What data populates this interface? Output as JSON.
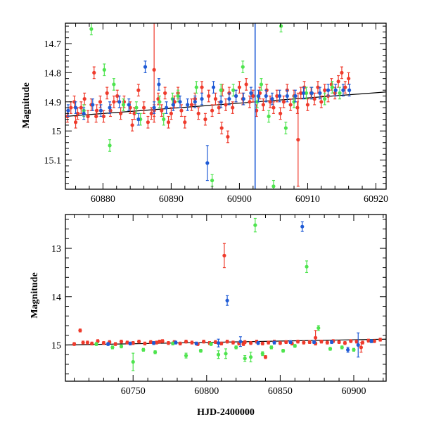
{
  "colors": {
    "red": "#ef3b2c",
    "green": "#4ee44e",
    "blue": "#1f5bd6",
    "fit": "#000000"
  },
  "chart_data": [
    {
      "type": "scatter",
      "title": "",
      "xlabel": "",
      "ylabel": "Magnitude",
      "xlim": [
        60874.5,
        60921.5
      ],
      "ylim": [
        15.2,
        14.63
      ],
      "y_inverted": true,
      "x_ticks": [
        60880,
        60890,
        60900,
        60910,
        60920
      ],
      "x_tick_labels": [
        "60880",
        "60890",
        "60900",
        "60910",
        "60920"
      ],
      "y_ticks": [
        14.7,
        14.8,
        14.9,
        15.0,
        15.1
      ],
      "y_tick_labels": [
        "14.7",
        "14.8",
        "14.9",
        "15",
        "15.1"
      ],
      "legend": "none",
      "vline": {
        "x": 60902.3,
        "color": "blue"
      },
      "fit_line": {
        "x": [
          60874.5,
          60921.5
        ],
        "y": [
          14.95,
          14.866
        ]
      },
      "series": [
        {
          "color": "red",
          "x": [
            60874.8,
            60875.3,
            60875.8,
            60876.3,
            60876.8,
            60877.3,
            60877.8,
            60878.3,
            60878.7,
            60879.1,
            60879.6,
            60880.1,
            60880.6,
            60881.1,
            60881.6,
            60882.1,
            60882.6,
            60883.1,
            60884.0,
            60884.6,
            60885.2,
            60886.0,
            60886.6,
            60887.1,
            60887.5,
            60888.1,
            60888.6,
            60889.1,
            60889.6,
            60890.0,
            60890.5,
            60891.0,
            60891.5,
            60892.0,
            60893.0,
            60893.5,
            60894.0,
            60894.5,
            60895.0,
            60895.5,
            60896.0,
            60896.5,
            60897.0,
            60897.5,
            60898.0,
            60898.5,
            60899.0,
            60899.5,
            60900.0,
            60900.5,
            60901.0,
            60901.5,
            60902.0,
            60902.5,
            60903.0,
            60903.5,
            60904.0,
            60904.5,
            60905.0,
            60905.5,
            60906.0,
            60906.5,
            60907.0,
            60907.5,
            60908.0,
            60908.5,
            60909.0,
            60909.5,
            60910.0,
            60910.5,
            60911.0,
            60911.5,
            60912.0,
            60912.5,
            60913.0,
            60913.5,
            60914.0,
            60914.5,
            60915.0,
            60915.5,
            60916.0,
            60898.3,
            60879.0,
            60887.5,
            60908.6,
            60876.0,
            60884.3,
            60897.4
          ],
          "y": [
            14.95,
            14.92,
            14.9,
            14.94,
            14.92,
            14.89,
            14.95,
            14.91,
            14.8,
            14.93,
            14.9,
            14.95,
            14.87,
            14.93,
            14.9,
            14.88,
            14.94,
            14.9,
            14.92,
            14.94,
            14.86,
            14.92,
            14.97,
            14.94,
            14.79,
            14.89,
            14.93,
            14.87,
            14.97,
            14.94,
            14.9,
            14.87,
            14.93,
            14.97,
            14.91,
            14.89,
            14.94,
            14.85,
            14.96,
            14.88,
            14.93,
            14.89,
            14.92,
            14.86,
            14.91,
            14.87,
            14.92,
            14.88,
            14.85,
            14.89,
            14.84,
            14.9,
            14.88,
            14.93,
            14.87,
            14.91,
            14.86,
            14.9,
            14.92,
            14.88,
            14.94,
            14.9,
            14.86,
            14.91,
            14.88,
            14.92,
            14.87,
            14.85,
            14.91,
            14.87,
            14.89,
            14.85,
            14.9,
            14.86,
            14.88,
            14.84,
            14.87,
            14.83,
            14.8,
            14.85,
            14.82,
            15.02,
            14.95,
            14.93,
            15.03,
            14.97,
            14.98,
            14.99
          ],
          "err": [
            0.02,
            0.02,
            0.02,
            0.02,
            0.02,
            0.02,
            0.02,
            0.02,
            0.02,
            0.02,
            0.02,
            0.02,
            0.02,
            0.02,
            0.02,
            0.02,
            0.02,
            0.02,
            0.02,
            0.02,
            0.02,
            0.02,
            0.02,
            0.02,
            0.18,
            0.02,
            0.02,
            0.02,
            0.02,
            0.02,
            0.02,
            0.02,
            0.02,
            0.02,
            0.02,
            0.02,
            0.02,
            0.02,
            0.02,
            0.02,
            0.02,
            0.02,
            0.02,
            0.02,
            0.02,
            0.02,
            0.02,
            0.02,
            0.02,
            0.02,
            0.02,
            0.02,
            0.02,
            0.02,
            0.02,
            0.02,
            0.02,
            0.02,
            0.02,
            0.02,
            0.02,
            0.02,
            0.02,
            0.02,
            0.02,
            0.02,
            0.02,
            0.02,
            0.02,
            0.02,
            0.02,
            0.02,
            0.02,
            0.02,
            0.02,
            0.02,
            0.02,
            0.02,
            0.02,
            0.02,
            0.02,
            0.02,
            0.02,
            0.02,
            0.16,
            0.02,
            0.02,
            0.02
          ]
        },
        {
          "color": "green",
          "x": [
            60878.3,
            60880.2,
            60881.0,
            60883.0,
            60885.5,
            60888.3,
            60891.0,
            60893.7,
            60896.0,
            60899.1,
            60900.5,
            60902.6,
            60904.3,
            60905.0,
            60906.1,
            60906.8,
            60908.0,
            60909.8,
            60912.5,
            60914.7,
            60877.2,
            60884.9,
            60890.2,
            60897.3,
            60903.2,
            60910.6,
            60913.6,
            60888.9,
            60881.6
          ],
          "y": [
            14.65,
            14.79,
            15.05,
            14.91,
            14.96,
            14.9,
            14.88,
            14.85,
            15.17,
            14.86,
            14.78,
            14.9,
            14.95,
            15.19,
            14.64,
            14.99,
            14.9,
            14.87,
            14.89,
            14.87,
            14.93,
            14.92,
            14.89,
            14.86,
            14.84,
            14.87,
            14.85,
            14.96,
            14.84
          ],
          "err": [
            0.02,
            0.02,
            0.02,
            0.02,
            0.02,
            0.02,
            0.02,
            0.02,
            0.02,
            0.02,
            0.02,
            0.02,
            0.02,
            0.02,
            0.02,
            0.02,
            0.02,
            0.02,
            0.02,
            0.02,
            0.02,
            0.02,
            0.02,
            0.02,
            0.02,
            0.02,
            0.02,
            0.02,
            0.02
          ]
        },
        {
          "color": "blue",
          "x": [
            60874.9,
            60876.0,
            60877.2,
            60878.5,
            60879.7,
            60881.0,
            60882.4,
            60883.8,
            60885.2,
            60886.2,
            60887.5,
            60888.2,
            60889.3,
            60890.3,
            60891.3,
            60892.4,
            60893.5,
            60894.5,
            60895.3,
            60896.2,
            60897.3,
            60898.5,
            60899.5,
            60900.6,
            60901.7,
            60902.8,
            60903.9,
            60904.8,
            60905.9,
            60907.0,
            60908.2,
            60909.4,
            60910.6,
            60911.8,
            60913.0,
            60914.1,
            60915.2,
            60916.1
          ],
          "y": [
            14.93,
            14.92,
            14.94,
            14.91,
            14.93,
            14.92,
            14.9,
            14.91,
            14.96,
            14.78,
            14.92,
            14.84,
            14.92,
            14.91,
            14.9,
            14.91,
            14.9,
            14.89,
            15.11,
            14.85,
            14.9,
            14.89,
            14.88,
            14.89,
            14.87,
            14.88,
            14.88,
            14.89,
            14.88,
            14.88,
            14.88,
            14.87,
            14.87,
            14.87,
            14.86,
            14.86,
            14.86,
            14.86
          ],
          "err": [
            0.02,
            0.02,
            0.02,
            0.02,
            0.02,
            0.02,
            0.02,
            0.02,
            0.02,
            0.02,
            0.02,
            0.02,
            0.02,
            0.02,
            0.02,
            0.02,
            0.02,
            0.02,
            0.06,
            0.02,
            0.02,
            0.02,
            0.02,
            0.02,
            0.02,
            0.02,
            0.02,
            0.02,
            0.02,
            0.02,
            0.02,
            0.02,
            0.02,
            0.02,
            0.02,
            0.02,
            0.02,
            0.02
          ]
        }
      ]
    },
    {
      "type": "scatter",
      "title": "",
      "xlabel": "HJD-2400000",
      "ylabel": "Magnitude",
      "xlim": [
        60704,
        60922
      ],
      "ylim": [
        15.75,
        12.3
      ],
      "y_inverted": true,
      "x_ticks": [
        60750,
        60800,
        60850,
        60900
      ],
      "x_tick_labels": [
        "60750",
        "60800",
        "60850",
        "60900"
      ],
      "y_ticks": [
        13,
        14,
        15
      ],
      "y_tick_labels": [
        "13",
        "14",
        "15"
      ],
      "legend": "none",
      "fit_line": {
        "x": [
          60704,
          60922
        ],
        "y": [
          15.0,
          14.88
        ]
      },
      "series": [
        {
          "color": "red",
          "x": [
            60710,
            60714,
            60716,
            60719,
            60722,
            60726,
            60730,
            60734,
            60738,
            60742,
            60746,
            60750,
            60754,
            60758,
            60762,
            60766,
            60770,
            60774,
            60778,
            60782,
            60786,
            60790,
            60794,
            60798,
            60802,
            60806,
            60810,
            60814,
            60818,
            60822,
            60826,
            60830,
            60834,
            60838,
            60842,
            60846,
            60850,
            60854,
            60858,
            60862,
            60866,
            60870,
            60874,
            60878,
            60882,
            60886,
            60890,
            60894,
            60898,
            60902,
            60906,
            60910,
            60914,
            60918,
            60812,
            60874,
            60905,
            60840,
            60768,
            60825
          ],
          "y": [
            14.98,
            14.7,
            14.95,
            14.95,
            14.97,
            14.92,
            14.96,
            14.94,
            14.98,
            14.93,
            14.95,
            14.96,
            14.93,
            14.97,
            14.94,
            14.95,
            14.92,
            14.96,
            14.94,
            14.97,
            14.93,
            14.95,
            14.98,
            14.93,
            14.96,
            14.94,
            14.97,
            14.93,
            14.95,
            14.97,
            14.94,
            14.96,
            14.93,
            14.97,
            14.95,
            14.93,
            14.96,
            14.94,
            14.97,
            14.93,
            14.95,
            14.94,
            14.97,
            14.93,
            14.95,
            14.92,
            14.94,
            14.96,
            14.92,
            14.93,
            14.95,
            14.91,
            14.92,
            14.89,
            13.15,
            14.85,
            15.05,
            15.25,
            14.93,
            14.98
          ],
          "err": [
            0.03,
            0.03,
            0.03,
            0.03,
            0.03,
            0.03,
            0.03,
            0.03,
            0.03,
            0.03,
            0.03,
            0.03,
            0.03,
            0.03,
            0.03,
            0.03,
            0.03,
            0.03,
            0.03,
            0.03,
            0.03,
            0.03,
            0.03,
            0.03,
            0.03,
            0.03,
            0.03,
            0.03,
            0.03,
            0.03,
            0.03,
            0.03,
            0.03,
            0.03,
            0.03,
            0.03,
            0.03,
            0.03,
            0.03,
            0.03,
            0.03,
            0.03,
            0.03,
            0.03,
            0.03,
            0.03,
            0.03,
            0.03,
            0.03,
            0.03,
            0.03,
            0.03,
            0.03,
            0.03,
            0.25,
            0.15,
            0.1,
            0.03,
            0.03,
            0.03
          ]
        },
        {
          "color": "green",
          "x": [
            60725,
            60736,
            60742,
            60750,
            60757,
            60765,
            60777,
            60786,
            60796,
            60803,
            60808,
            60813,
            60820,
            60826,
            60830,
            60833,
            60838,
            60844,
            60852,
            60860,
            60868,
            60876,
            60884,
            60892,
            60900,
            60912
          ],
          "y": [
            14.98,
            15.05,
            15.03,
            15.35,
            15.1,
            15.15,
            14.97,
            15.22,
            15.12,
            14.98,
            15.2,
            15.18,
            15.05,
            15.28,
            15.25,
            12.52,
            15.18,
            15.05,
            15.12,
            15.02,
            13.38,
            14.65,
            15.08,
            15.05,
            15.1,
            14.92
          ],
          "err": [
            0.03,
            0.03,
            0.03,
            0.18,
            0.03,
            0.03,
            0.03,
            0.05,
            0.03,
            0.03,
            0.08,
            0.1,
            0.03,
            0.06,
            0.1,
            0.14,
            0.04,
            0.03,
            0.03,
            0.03,
            0.12,
            0.05,
            0.03,
            0.03,
            0.03,
            0.03
          ]
        },
        {
          "color": "blue",
          "x": [
            60733,
            60748,
            60764,
            60779,
            60793,
            60808,
            60814,
            60823,
            60835,
            60846,
            60857,
            60865,
            60873,
            60885,
            60896,
            60903,
            60912
          ],
          "y": [
            14.98,
            14.97,
            14.96,
            14.95,
            14.97,
            14.96,
            14.08,
            14.93,
            14.96,
            14.95,
            14.94,
            12.55,
            14.94,
            14.94,
            15.1,
            15.0,
            14.92
          ],
          "err": [
            0.03,
            0.03,
            0.03,
            0.03,
            0.03,
            0.08,
            0.1,
            0.1,
            0.03,
            0.03,
            0.03,
            0.1,
            0.03,
            0.03,
            0.05,
            0.25,
            0.03
          ]
        }
      ]
    }
  ]
}
